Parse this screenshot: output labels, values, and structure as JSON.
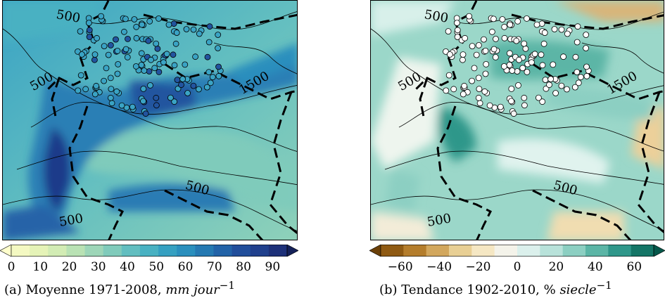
{
  "chart_data": [
    {
      "type": "heatmap",
      "panel": "a",
      "caption_prefix": "(a) Moyenne 1971-2008,",
      "caption_unit_italic": "mm jour",
      "caption_unit_sup": "−1",
      "colorbar": {
        "ticks": [
          "0",
          "10",
          "20",
          "30",
          "40",
          "50",
          "60",
          "70",
          "80",
          "90"
        ],
        "tick_values": [
          0,
          10,
          20,
          30,
          40,
          50,
          60,
          70,
          80,
          90
        ],
        "range": [
          0,
          95
        ],
        "colors": [
          "#ffffcc",
          "#f4f9c2",
          "#e5f3b7",
          "#d2ecb4",
          "#b9e2b4",
          "#9dd6b8",
          "#80cbbb",
          "#62bec0",
          "#48b1c2",
          "#35a0c1",
          "#2a8fbd",
          "#2579b2",
          "#2263a8",
          "#214e9b",
          "#20408d",
          "#1d3079",
          "#142058"
        ],
        "extend": "both"
      },
      "contour_labels": [
        "500",
        "500",
        "1500",
        "500",
        "500"
      ],
      "stations": "circles"
    },
    {
      "type": "heatmap",
      "panel": "b",
      "caption_prefix": "(b) Tendance 1902-2010, %",
      "caption_unit_italic": "siecle",
      "caption_unit_sup": "−1",
      "colorbar": {
        "ticks": [
          "−60",
          "−40",
          "−20",
          "0",
          "20",
          "40",
          "60"
        ],
        "tick_values": [
          -60,
          -40,
          -20,
          0,
          20,
          40,
          60
        ],
        "range": [
          -70,
          70
        ],
        "colors": [
          "#6b4008",
          "#8f5a13",
          "#b47d2c",
          "#d2a75d",
          "#e8cf94",
          "#f5e7c3",
          "#f4f3ea",
          "#dbf0ec",
          "#b8e2da",
          "#8ccfc2",
          "#5bb5a6",
          "#2f978a",
          "#147566",
          "#06574a"
        ],
        "extend": "both"
      },
      "contour_labels": [
        "500",
        "500",
        "1500",
        "500",
        "500"
      ],
      "stations": "circles"
    }
  ]
}
